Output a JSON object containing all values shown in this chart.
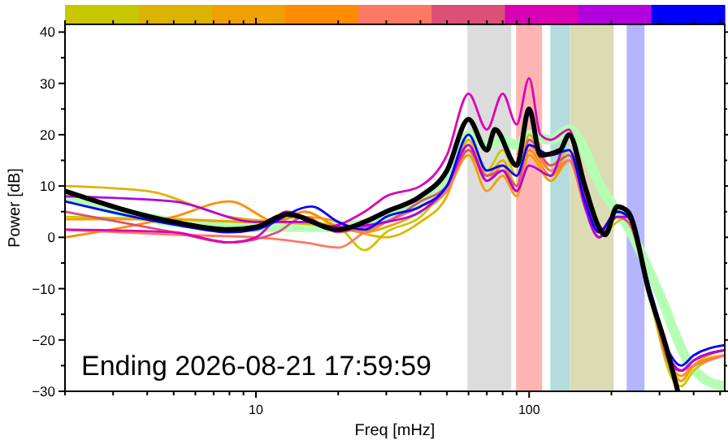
{
  "chart_data": {
    "type": "line",
    "xlabel": "Freq [mHz]",
    "ylabel": "Power [dB]",
    "log": "x",
    "xlim": [
      2,
      520
    ],
    "ylim": [
      -30,
      41.5
    ],
    "xticks": [
      {
        "value": 2,
        "label": null
      },
      {
        "value": 3,
        "label": null
      },
      {
        "value": 4,
        "label": null
      },
      {
        "value": 5,
        "label": null
      },
      {
        "value": 6,
        "label": null
      },
      {
        "value": 7,
        "label": null
      },
      {
        "value": 8,
        "label": null
      },
      {
        "value": 9,
        "label": null
      },
      10,
      {
        "value": 20,
        "label": null
      },
      {
        "value": 30,
        "label": null
      },
      {
        "value": 40,
        "label": null
      },
      {
        "value": 50,
        "label": null
      },
      {
        "value": 60,
        "label": null
      },
      {
        "value": 70,
        "label": null
      },
      {
        "value": 80,
        "label": null
      },
      {
        "value": 90,
        "label": null
      },
      100,
      {
        "value": 200,
        "label": null
      },
      {
        "value": 300,
        "label": null
      },
      {
        "value": 400,
        "label": null
      },
      {
        "value": 500,
        "label": null
      }
    ],
    "yticks": [
      -30,
      {
        "value": -25,
        "label": null
      },
      -20,
      {
        "value": -15,
        "label": null
      },
      -10,
      {
        "value": -5,
        "label": null
      },
      0,
      {
        "value": 5,
        "label": null
      },
      10,
      {
        "value": 15,
        "label": null
      },
      20,
      {
        "value": 25,
        "label": null
      },
      30,
      {
        "value": 35,
        "label": null
      },
      40
    ],
    "grid": false,
    "line_style": "solid",
    "marker": "none",
    "bands": [
      {
        "axis": "x",
        "from": 59.4,
        "to": 86,
        "color": "#dcdcdc"
      },
      {
        "axis": "x",
        "from": 89.6,
        "to": 111.6,
        "color": "#ffb4b4"
      },
      {
        "axis": "x",
        "from": 119.5,
        "to": 141,
        "color": "#b4dcdc"
      },
      {
        "axis": "x",
        "from": 141,
        "to": 204,
        "color": "#dcdcb4"
      },
      {
        "axis": "x",
        "from": 227.6,
        "to": 264.5,
        "color": "#b4b4ff"
      }
    ],
    "annotations": [
      "Ending 2026-08-21 17:59:59"
    ],
    "series": [
      {
        "color": "#b4ffb4",
        "x": [
          2,
          5,
          10,
          20,
          30,
          40,
          50,
          60,
          70,
          80,
          90,
          100,
          120,
          140,
          187,
          230,
          300,
          380,
          450,
          520
        ],
        "values": [
          8,
          3,
          2,
          2,
          4,
          7,
          11,
          20,
          18,
          19,
          18,
          20,
          19,
          21,
          9,
          2,
          -11,
          -24,
          -28,
          -29
        ]
      },
      {
        "color": "#c8c800",
        "x": [
          2,
          5,
          10,
          15,
          20,
          25,
          30,
          40,
          50,
          60,
          70,
          80,
          90,
          100,
          120,
          140,
          160,
          180,
          210,
          230,
          280,
          330,
          360,
          400,
          520
        ],
        "values": [
          4,
          3.5,
          3,
          3,
          2,
          -2.5,
          1,
          4,
          10,
          16,
          13,
          17,
          12,
          18,
          14,
          17,
          8,
          0,
          3,
          4,
          -13,
          -27,
          -29,
          -26,
          -23
        ]
      },
      {
        "color": "#dcb400",
        "x": [
          2,
          4,
          8,
          12,
          20,
          30,
          40,
          50,
          60,
          70,
          80,
          90,
          100,
          120,
          140,
          160,
          180,
          210,
          230,
          280,
          330,
          360,
          400,
          520
        ],
        "values": [
          10,
          9,
          4,
          3,
          2,
          0,
          3,
          8,
          19,
          12,
          15,
          10,
          20,
          13,
          16,
          7,
          1,
          4,
          3,
          -12,
          -26,
          -28,
          -25,
          -22
        ]
      },
      {
        "color": "#f0a000",
        "x": [
          2,
          5,
          10,
          15,
          20,
          25,
          30,
          40,
          50,
          60,
          70,
          80,
          90,
          100,
          120,
          140,
          160,
          180,
          210,
          230,
          280,
          330,
          360,
          400,
          520
        ],
        "values": [
          3.5,
          3.5,
          3,
          4,
          3,
          1,
          2,
          5,
          9,
          16,
          9,
          12,
          8,
          16,
          11,
          15,
          6,
          0,
          5,
          4,
          -12,
          -25,
          -28,
          -25,
          -23
        ]
      },
      {
        "color": "#ff8c00",
        "x": [
          2,
          5,
          8,
          12,
          15,
          20,
          25,
          30,
          40,
          50,
          60,
          70,
          80,
          90,
          100,
          120,
          140,
          160,
          180,
          210,
          230,
          280,
          330,
          360,
          400,
          520
        ],
        "values": [
          0,
          4,
          7,
          3,
          5,
          2,
          1,
          3,
          6,
          9,
          18,
          11,
          14,
          9,
          17,
          12,
          15,
          6,
          1,
          5,
          4,
          -12,
          -25,
          -27,
          -25,
          -23
        ]
      },
      {
        "color": "#ff7864",
        "x": [
          2,
          5,
          10,
          15,
          20,
          25,
          30,
          40,
          50,
          60,
          70,
          80,
          90,
          100,
          120,
          140,
          160,
          180,
          210,
          230,
          280,
          330,
          360,
          400,
          520
        ],
        "values": [
          1.5,
          0.5,
          0,
          -1,
          -2,
          1,
          3,
          6,
          9,
          17,
          11,
          13,
          9,
          18,
          13,
          15,
          6,
          0,
          4,
          4,
          -12,
          -24,
          -26,
          -25,
          -23
        ]
      },
      {
        "color": "#dc5078",
        "x": [
          2,
          5,
          8,
          12,
          15,
          20,
          25,
          30,
          40,
          50,
          60,
          70,
          80,
          90,
          100,
          120,
          140,
          160,
          180,
          210,
          230,
          280,
          330,
          360,
          400,
          520
        ],
        "values": [
          5,
          1,
          -1,
          1,
          4,
          1,
          2,
          3,
          7,
          10,
          17,
          12,
          13,
          10,
          19,
          14,
          16,
          6,
          0,
          4,
          3,
          -12,
          -25,
          -26,
          -24,
          -22
        ]
      },
      {
        "color": "#dc00b4",
        "x": [
          2,
          5,
          8,
          10,
          13,
          18,
          25,
          30,
          40,
          50,
          60,
          70,
          80,
          90,
          100,
          110,
          120,
          140,
          160,
          180,
          210,
          230,
          280,
          330,
          360,
          400,
          520
        ],
        "values": [
          1.5,
          1,
          -1,
          0,
          5,
          2,
          5,
          8,
          10,
          16,
          28,
          21,
          28,
          22,
          31,
          20,
          19,
          21,
          8,
          1,
          5,
          4,
          -12,
          -24,
          -26,
          -24,
          -22
        ]
      },
      {
        "color": "#b400dc",
        "x": [
          2,
          5,
          10,
          15,
          20,
          30,
          40,
          50,
          60,
          70,
          80,
          90,
          100,
          120,
          140,
          160,
          180,
          210,
          230,
          280,
          330,
          360,
          400,
          520
        ],
        "values": [
          8,
          7,
          3,
          3,
          2,
          3,
          5,
          10,
          18,
          11,
          13,
          9,
          14,
          12,
          20,
          6,
          0,
          4,
          4,
          -12,
          -24,
          -26,
          -24,
          -22
        ]
      },
      {
        "color": "#0000ff",
        "x": [
          2,
          5,
          8,
          10,
          16,
          20,
          25,
          30,
          40,
          50,
          60,
          70,
          80,
          90,
          100,
          120,
          140,
          160,
          180,
          210,
          230,
          280,
          330,
          360,
          400,
          520
        ],
        "values": [
          7,
          2.5,
          1,
          1.5,
          6,
          3,
          1.5,
          4,
          6,
          10,
          20,
          13,
          14,
          12,
          18,
          16,
          17,
          7,
          1,
          5,
          4,
          -11,
          -23,
          -25,
          -23,
          -21
        ]
      },
      {
        "color": "#000000",
        "x": [
          2,
          5,
          8,
          10,
          13,
          20,
          25,
          30,
          40,
          50,
          60,
          70,
          75,
          90,
          100,
          110,
          130,
          140,
          160,
          180,
          190,
          210,
          230,
          276,
          320,
          350
        ],
        "values": [
          9,
          3,
          1.5,
          2,
          4.5,
          1.5,
          3,
          5,
          8,
          13,
          23,
          17,
          21,
          14,
          25,
          16,
          17,
          20,
          10,
          2,
          0.5,
          6,
          5,
          -11,
          -22,
          -30
        ]
      }
    ]
  }
}
